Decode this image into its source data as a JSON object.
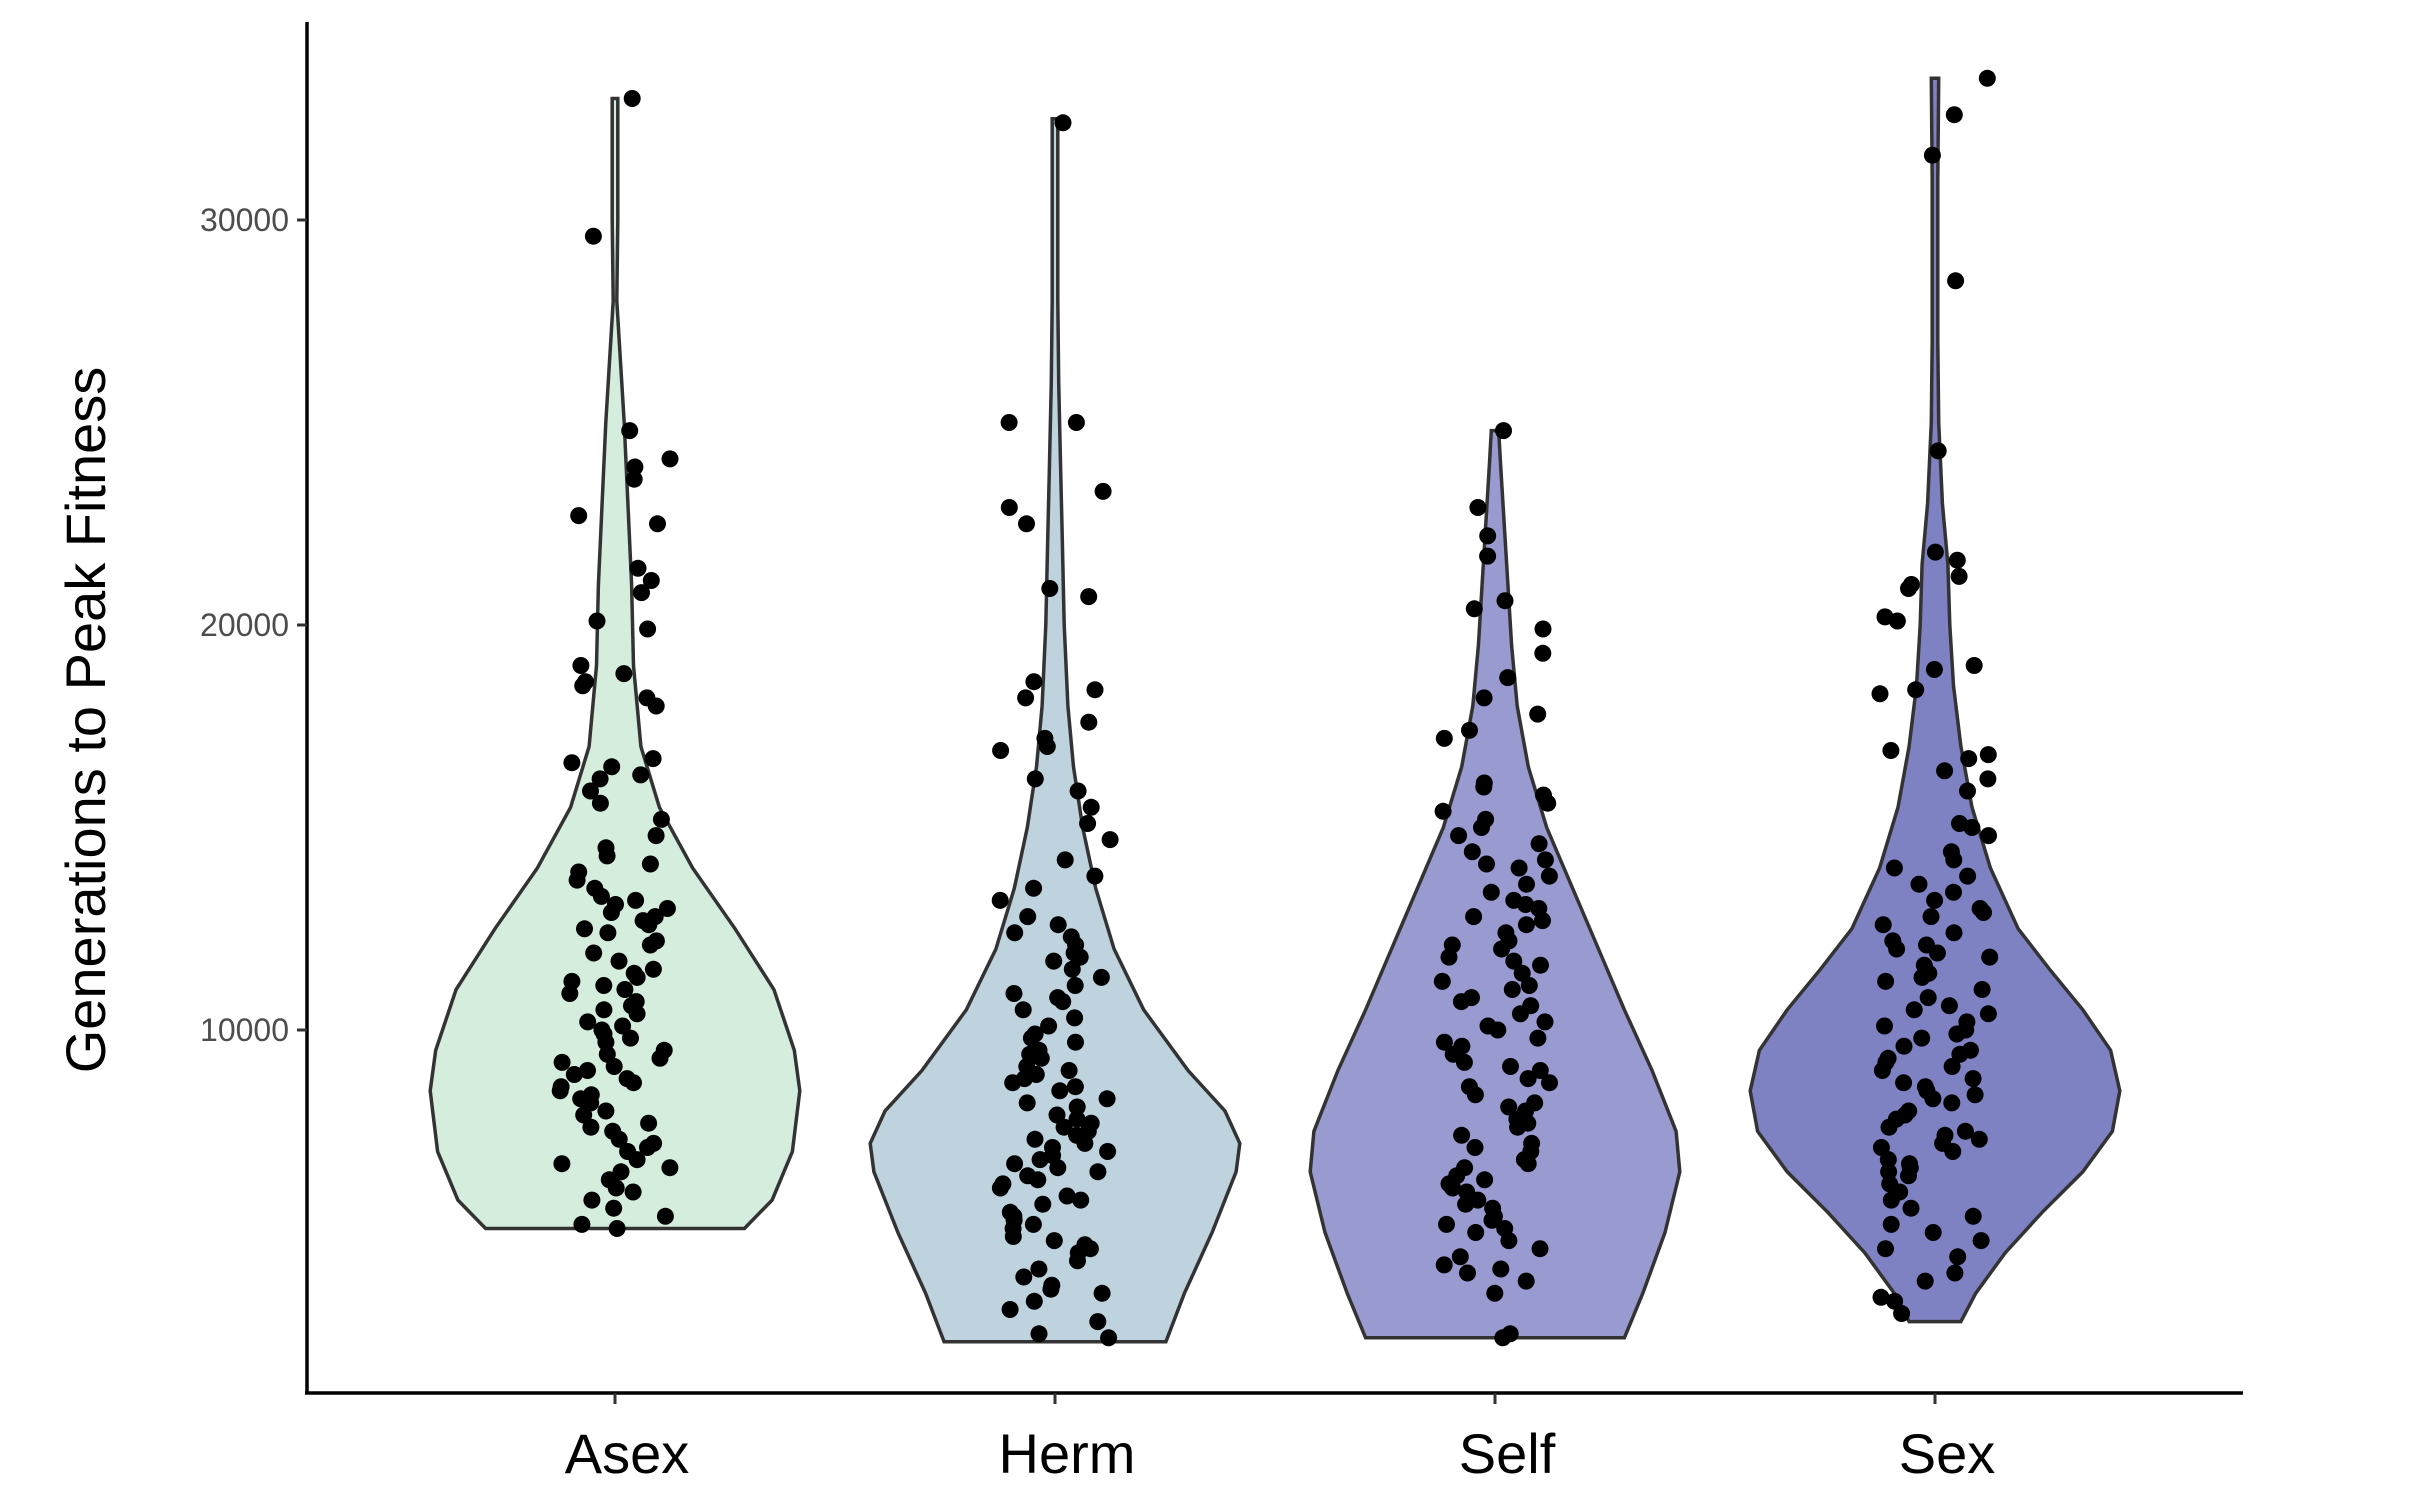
{
  "chart_data": {
    "type": "violin",
    "title": "",
    "xlabel": "",
    "ylabel": "Generations to Peak Fitness",
    "ylim": [
      2000,
      35000
    ],
    "yticks": [
      10000,
      20000,
      30000
    ],
    "ytick_labels": [
      "10000",
      "20000",
      "30000"
    ],
    "grid": false,
    "legend": "none",
    "groups": [
      {
        "category": "Asex",
        "fill": "#d4eddc",
        "min": 5100,
        "max": 33000,
        "density": [
          [
            5100,
            0.7
          ],
          [
            5800,
            0.85
          ],
          [
            7000,
            0.96
          ],
          [
            8500,
            1.0
          ],
          [
            9500,
            0.97
          ],
          [
            11000,
            0.86
          ],
          [
            12500,
            0.65
          ],
          [
            14000,
            0.42
          ],
          [
            15500,
            0.24
          ],
          [
            17000,
            0.14
          ],
          [
            19000,
            0.1
          ],
          [
            21000,
            0.09
          ],
          [
            23000,
            0.07
          ],
          [
            25000,
            0.05
          ],
          [
            26500,
            0.03
          ],
          [
            28000,
            0.01
          ],
          [
            30000,
            0.015
          ],
          [
            32000,
            0.015
          ],
          [
            33000,
            0.015
          ]
        ],
        "points": [
          33000,
          29600,
          24800,
          24100,
          23900,
          23600,
          22700,
          22500,
          21400,
          21100,
          20800,
          20100,
          19900,
          19000,
          18800,
          18600,
          18500,
          18200,
          18000,
          16700,
          16600,
          16500,
          16300,
          16200,
          15900,
          15600,
          15200,
          14800,
          14500,
          14300,
          14100,
          13900,
          13700,
          13500,
          13300,
          13100,
          13000,
          12900,
          12700,
          12500,
          12400,
          12200,
          12100,
          11900,
          11700,
          11500,
          11300,
          11200,
          11000,
          10900,
          10700,
          10500,
          10400,
          10200,
          10000,
          9900,
          9700,
          9500,
          9400,
          9200,
          9000,
          8900,
          8700,
          8500,
          8400,
          8200,
          8000,
          7900,
          7700,
          7500,
          7300,
          7200,
          7000,
          6800,
          6700,
          6500,
          6300,
          6100,
          6000,
          5800,
          5600,
          5400,
          5200,
          5100,
          9300,
          8800,
          8600,
          9800,
          10600,
          11100,
          12600,
          13200,
          7600,
          7100,
          6600,
          9100,
          8300,
          10100,
          11400,
          12800
        ]
      },
      {
        "category": "Herm",
        "fill": "#bed3dd",
        "min": 2300,
        "max": 32500,
        "density": [
          [
            2300,
            0.6
          ],
          [
            3500,
            0.7
          ],
          [
            5000,
            0.85
          ],
          [
            6500,
            0.98
          ],
          [
            7200,
            1.0
          ],
          [
            8000,
            0.92
          ],
          [
            9000,
            0.72
          ],
          [
            10500,
            0.48
          ],
          [
            12000,
            0.32
          ],
          [
            13500,
            0.22
          ],
          [
            15000,
            0.15
          ],
          [
            16500,
            0.1
          ],
          [
            18000,
            0.07
          ],
          [
            20000,
            0.05
          ],
          [
            22000,
            0.04
          ],
          [
            24000,
            0.03
          ],
          [
            26000,
            0.02
          ],
          [
            28000,
            0.015
          ],
          [
            30000,
            0.015
          ],
          [
            32500,
            0.015
          ]
        ],
        "points": [
          32400,
          25000,
          25000,
          23300,
          22900,
          22500,
          20900,
          20700,
          18600,
          18400,
          18200,
          17600,
          17200,
          17000,
          16900,
          16200,
          15900,
          15500,
          15100,
          14700,
          14200,
          13800,
          13500,
          13200,
          12800,
          12600,
          12300,
          12100,
          11900,
          11700,
          11500,
          11300,
          11100,
          10900,
          10700,
          10500,
          10300,
          10100,
          9900,
          9700,
          9500,
          9300,
          9100,
          8900,
          8700,
          8500,
          8300,
          8100,
          7900,
          7700,
          7500,
          7300,
          7100,
          6900,
          6700,
          6500,
          6300,
          6100,
          5900,
          5700,
          5500,
          5300,
          5100,
          4900,
          4700,
          4500,
          4300,
          4100,
          3900,
          3700,
          3500,
          3300,
          3100,
          2800,
          2500,
          2400,
          8800,
          8200,
          7600,
          7000,
          6400,
          5800,
          5200,
          4600,
          9800,
          10800,
          11800,
          6600,
          7400,
          8600,
          9400,
          12400,
          7200,
          6200,
          5400,
          4800,
          3600,
          6800,
          7800,
          9000
        ]
      },
      {
        "category": "Self",
        "fill": "#999acf",
        "min": 2400,
        "max": 24800,
        "density": [
          [
            2400,
            0.7
          ],
          [
            3500,
            0.8
          ],
          [
            5000,
            0.92
          ],
          [
            6500,
            1.0
          ],
          [
            7500,
            0.98
          ],
          [
            9000,
            0.85
          ],
          [
            10500,
            0.7
          ],
          [
            12000,
            0.56
          ],
          [
            13500,
            0.42
          ],
          [
            15000,
            0.28
          ],
          [
            16500,
            0.18
          ],
          [
            18000,
            0.12
          ],
          [
            19500,
            0.09
          ],
          [
            21000,
            0.07
          ],
          [
            22500,
            0.05
          ],
          [
            24000,
            0.03
          ],
          [
            24800,
            0.02
          ]
        ],
        "points": [
          24800,
          22900,
          22200,
          21700,
          20600,
          20400,
          19900,
          19300,
          18700,
          18200,
          17800,
          17400,
          17200,
          16100,
          16000,
          15800,
          15600,
          15400,
          15200,
          15000,
          14800,
          14600,
          14400,
          14200,
          14000,
          13800,
          13600,
          13400,
          13200,
          13000,
          12800,
          12600,
          12400,
          12200,
          12000,
          11800,
          11600,
          11400,
          11200,
          11000,
          10800,
          10600,
          10400,
          10200,
          10000,
          9800,
          9600,
          9400,
          9200,
          9000,
          8800,
          8600,
          8400,
          8200,
          8000,
          7800,
          7600,
          7400,
          7200,
          7000,
          6800,
          6600,
          6400,
          6200,
          6000,
          5800,
          5600,
          5400,
          5200,
          5000,
          4800,
          4600,
          4400,
          4200,
          4000,
          3800,
          3500,
          2500,
          2400,
          12100,
          11100,
          10100,
          9100,
          8100,
          7100,
          6100,
          5100,
          4100,
          13100,
          14100,
          9700,
          8700,
          7700,
          6700,
          5700,
          10700,
          11700,
          12700,
          6300,
          5300
        ]
      },
      {
        "category": "Sex",
        "fill": "#7f82c2",
        "min": 2800,
        "max": 33500,
        "density": [
          [
            2800,
            0.14
          ],
          [
            3500,
            0.22
          ],
          [
            4500,
            0.38
          ],
          [
            5500,
            0.58
          ],
          [
            6500,
            0.8
          ],
          [
            7500,
            0.96
          ],
          [
            8500,
            1.0
          ],
          [
            9500,
            0.95
          ],
          [
            10500,
            0.8
          ],
          [
            11500,
            0.62
          ],
          [
            12500,
            0.45
          ],
          [
            14000,
            0.3
          ],
          [
            15500,
            0.2
          ],
          [
            17000,
            0.14
          ],
          [
            18500,
            0.1
          ],
          [
            20000,
            0.08
          ],
          [
            21500,
            0.07
          ],
          [
            23000,
            0.04
          ],
          [
            25000,
            0.02
          ],
          [
            27000,
            0.015
          ],
          [
            29000,
            0.015
          ],
          [
            31000,
            0.015
          ],
          [
            33500,
            0.02
          ]
        ],
        "points": [
          33500,
          32600,
          31600,
          28500,
          24300,
          21800,
          21600,
          21200,
          21000,
          20900,
          20200,
          20100,
          19000,
          18900,
          18400,
          18300,
          16900,
          16800,
          16700,
          16400,
          16200,
          15900,
          15100,
          15000,
          14800,
          14400,
          14200,
          14000,
          13800,
          13600,
          13400,
          13200,
          13000,
          12800,
          12600,
          12400,
          12200,
          12000,
          11800,
          11600,
          11400,
          11200,
          11000,
          10800,
          10600,
          10400,
          10200,
          10000,
          9800,
          9600,
          9400,
          9200,
          9000,
          8800,
          8600,
          8400,
          8200,
          8000,
          7800,
          7600,
          7400,
          7200,
          7000,
          6800,
          6600,
          6400,
          6200,
          6000,
          5800,
          5600,
          5400,
          5200,
          5000,
          4800,
          4600,
          4400,
          4000,
          3800,
          3400,
          3300,
          3000,
          9900,
          9500,
          9100,
          8700,
          8300,
          7900,
          7500,
          7100,
          6700,
          10500,
          11300,
          12100,
          8500,
          9300,
          10100,
          7300,
          6500,
          11900,
          12900
        ]
      }
    ]
  }
}
